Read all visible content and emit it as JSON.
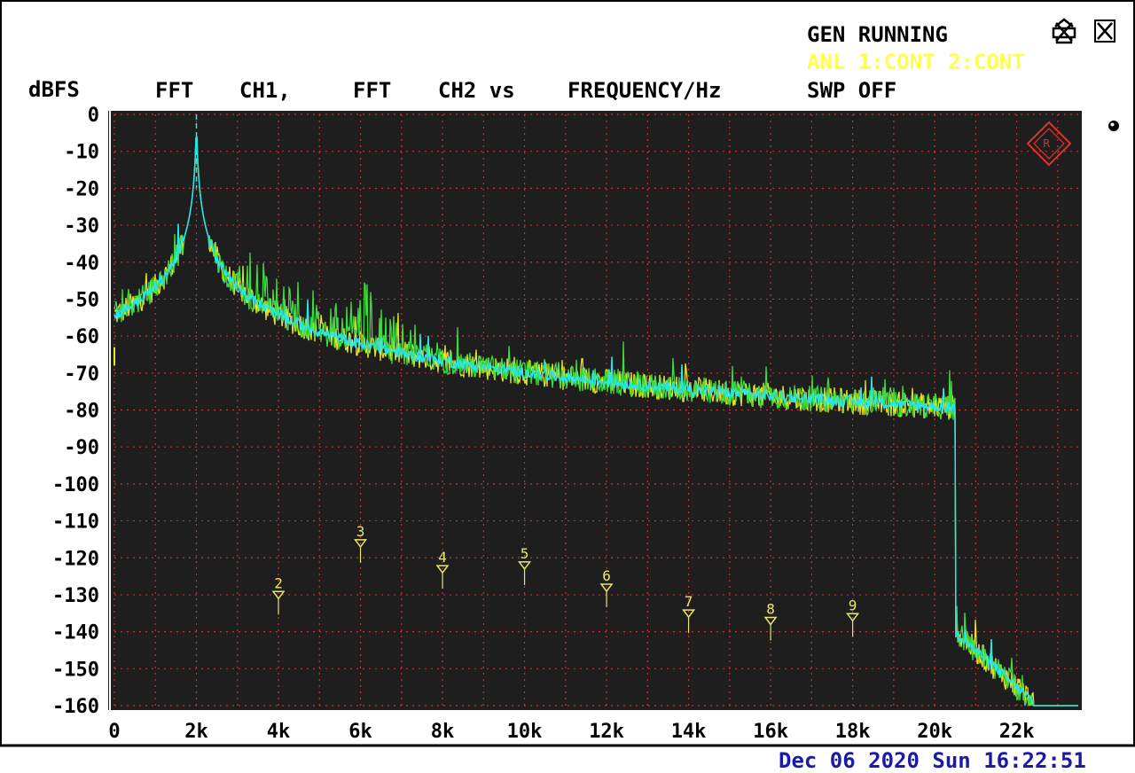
{
  "header": {
    "gen_status": "GEN RUNNING",
    "anl_status": "ANL 1:CONT 2:CONT",
    "swp_status": "SWP OFF",
    "title_parts": [
      "FFT",
      "CH1,",
      "FFT",
      "CH2 vs",
      "FREQUENCY/Hz"
    ],
    "ylabel": "dBFS"
  },
  "timestamp": "Dec 06 2020 Sun 16:22:51",
  "colors": {
    "plot_bg": "#1e1e1e",
    "grid": "#c83232",
    "ch1_trace": "#e6e61e",
    "ch2_trace": "#3cdc3c",
    "overlay_trace": "#28e6e6",
    "marker": "#e6e66e",
    "gen_text": "#000000",
    "anl_text": "#ffff50",
    "timestamp_text": "#1a1aa8",
    "logo": "#e03030"
  },
  "icons": [
    "printer-icon",
    "close-window-icon",
    "power-off-icon"
  ],
  "chart_data": {
    "type": "line",
    "title": "FFT CH1, FFT CH2 vs FREQUENCY/Hz",
    "xlabel": "",
    "ylabel": "dBFS",
    "xlim": [
      0,
      23500
    ],
    "ylim": [
      -160,
      0
    ],
    "x_ticks": [
      0,
      2000,
      4000,
      6000,
      8000,
      10000,
      12000,
      14000,
      16000,
      18000,
      20000,
      22000
    ],
    "x_tick_labels": [
      "0",
      "2k",
      "4k",
      "6k",
      "8k",
      "10k",
      "12k",
      "14k",
      "16k",
      "18k",
      "20k",
      "22k"
    ],
    "y_ticks": [
      0,
      -10,
      -20,
      -30,
      -40,
      -50,
      -60,
      -70,
      -80,
      -90,
      -100,
      -110,
      -120,
      -130,
      -140,
      -150,
      -160
    ],
    "y_tick_labels": [
      "0",
      "-10",
      "-20",
      "-30",
      "-40",
      "-50",
      "-60",
      "-70",
      "-80",
      "-90",
      "-100",
      "-110",
      "-120",
      "-130",
      "-140",
      "-150",
      "-160"
    ],
    "grid": true,
    "fundamental_hz": 2000,
    "fundamental_dbfs": -1,
    "noise_floor_dbfs": -140,
    "rolloff_start_hz": 20500,
    "floor_after_rolloff_dbfs": -160,
    "harmonics": [
      {
        "label": "2",
        "freq_hz": 4000,
        "dbfs": -132
      },
      {
        "label": "3",
        "freq_hz": 6000,
        "dbfs": -118
      },
      {
        "label": "4",
        "freq_hz": 8000,
        "dbfs": -125
      },
      {
        "label": "5",
        "freq_hz": 10000,
        "dbfs": -124
      },
      {
        "label": "6",
        "freq_hz": 12000,
        "dbfs": -130
      },
      {
        "label": "7",
        "freq_hz": 14000,
        "dbfs": -137
      },
      {
        "label": "8",
        "freq_hz": 16000,
        "dbfs": -139
      },
      {
        "label": "9",
        "freq_hz": 18000,
        "dbfs": -138
      }
    ],
    "series": [
      {
        "name": "CH1"
      },
      {
        "name": "CH2"
      }
    ]
  }
}
